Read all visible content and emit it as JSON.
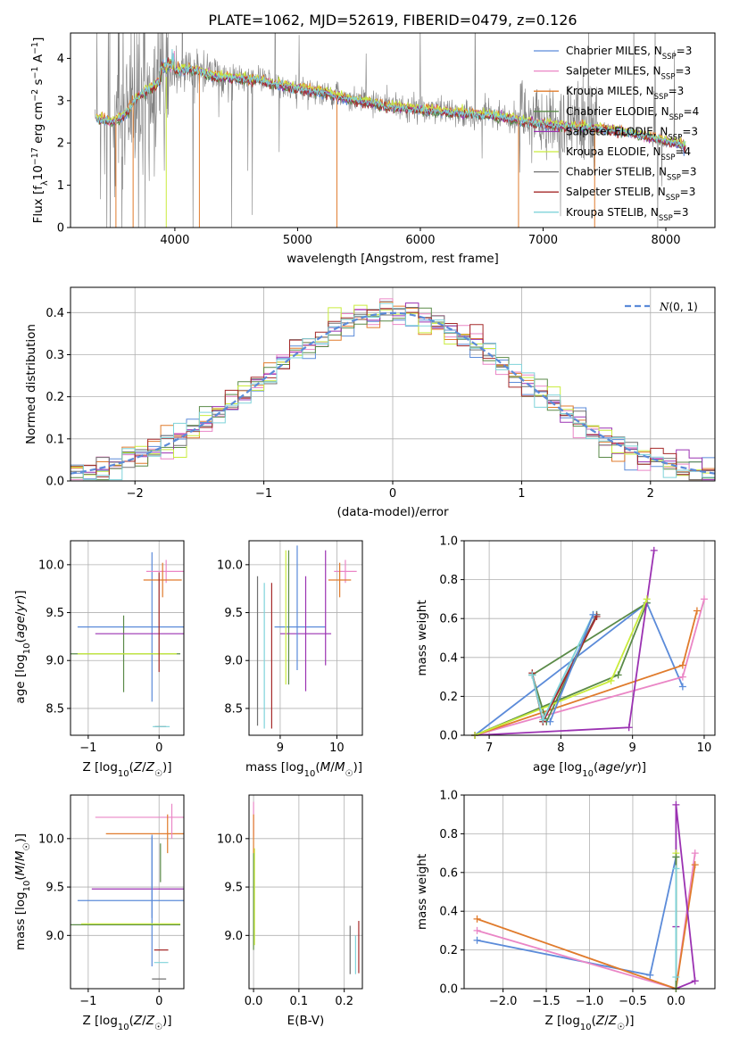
{
  "chart_data": [
    {
      "id": "spectrum",
      "type": "line",
      "title": "PLATE=1062, MJD=52619, FIBERID=0479, z=0.126",
      "xlabel": "wavelength [Angstrom, rest frame]",
      "ylabel_parts": [
        "Flux [f",
        "λ",
        "10",
        "−17",
        " erg cm",
        "−2",
        " s",
        "−1",
        " A",
        "−1",
        "]"
      ],
      "xlim": [
        3150,
        8400
      ],
      "ylim": [
        0,
        4.6
      ],
      "xticks": [
        4000,
        5000,
        6000,
        7000,
        8000
      ],
      "yticks": [
        0,
        1,
        2,
        3,
        4
      ],
      "grid": false,
      "legend_position": "upper right",
      "data_curve": {
        "color": "#808080",
        "x": [
          3350,
          3500,
          3600,
          3700,
          3800,
          3900,
          4000,
          4100,
          4200,
          4300,
          4400,
          4500,
          4600,
          4700,
          4800,
          4900,
          5000,
          5200,
          5400,
          5600,
          5800,
          6000,
          6200,
          6400,
          6600,
          6800,
          7000,
          7200,
          7400,
          7600,
          7800,
          8000,
          8150
        ],
        "y": [
          2.6,
          2.5,
          2.7,
          3.1,
          3.3,
          3.5,
          3.7,
          3.75,
          3.7,
          3.6,
          3.55,
          3.55,
          3.5,
          3.5,
          3.4,
          3.35,
          3.3,
          3.2,
          3.05,
          2.95,
          2.85,
          2.8,
          2.75,
          2.7,
          2.65,
          2.55,
          2.45,
          2.4,
          2.35,
          2.3,
          2.2,
          2.05,
          1.95
        ]
      },
      "series": [
        {
          "name": "Chabrier MILES, N",
          "sub": "SSP",
          "suffix": "=3",
          "color": "#5b8bd9"
        },
        {
          "name": "Salpeter MILES, N",
          "sub": "SSP",
          "suffix": "=3",
          "color": "#ea86c6"
        },
        {
          "name": "Kroupa MILES, N",
          "sub": "SSP",
          "suffix": "=3",
          "color": "#e07b2c"
        },
        {
          "name": "Chabrier ELODIE, N",
          "sub": "SSP",
          "suffix": "=4",
          "color": "#5a8a48"
        },
        {
          "name": "Salpeter ELODIE, N",
          "sub": "SSP",
          "suffix": "=3",
          "color": "#9b32b2"
        },
        {
          "name": "Kroupa ELODIE, N",
          "sub": "SSP",
          "suffix": "=4",
          "color": "#c9ec3c"
        },
        {
          "name": "Chabrier STELIB, N",
          "sub": "SSP",
          "suffix": "=3",
          "color": "#707070"
        },
        {
          "name": "Salpeter STELIB, N",
          "sub": "SSP",
          "suffix": "=3",
          "color": "#a52a2a"
        },
        {
          "name": "Kroupa STELIB, N",
          "sub": "SSP",
          "suffix": "=3",
          "color": "#7fd3da"
        }
      ]
    },
    {
      "id": "residuals",
      "type": "histogram",
      "xlabel": "(data-model)/error",
      "ylabel": "Normed distribution",
      "xlim": [
        -2.5,
        2.5
      ],
      "ylim": [
        0,
        0.46
      ],
      "xticks": [
        -2,
        -1,
        0,
        1,
        2
      ],
      "yticks": [
        0.0,
        0.1,
        0.2,
        0.3,
        0.4
      ],
      "grid": true,
      "legend_position": "upper right",
      "reference": {
        "name": "N(0,1)",
        "mean": 0,
        "sigma": 1,
        "color": "#5b8bd9"
      },
      "bin_width": 0.1
    },
    {
      "id": "age-vs-Z",
      "type": "errorbar",
      "xlabel": "Z [log10(Z/Z☉)]",
      "ylabel": "age  [log10(age/yr)]",
      "xlim": [
        -1.25,
        0.35
      ],
      "ylim": [
        8.22,
        10.25
      ],
      "xticks": [
        -1,
        0
      ],
      "yticks": [
        8.5,
        9.0,
        9.5,
        10.0
      ],
      "grid": true,
      "points": [
        {
          "color": "#5b8bd9",
          "x": -0.1,
          "xerr": 1.05,
          "y": 9.35,
          "yerr": 0.78
        },
        {
          "color": "#ea86c6",
          "x": 0.1,
          "xerr": 0.28,
          "y": 9.93,
          "yerr": 0.12
        },
        {
          "color": "#e07b2c",
          "x": 0.05,
          "xerr": 0.27,
          "y": 9.84,
          "yerr": 0.18
        },
        {
          "color": "#5a8a48",
          "x": -0.5,
          "xerr": 0.8,
          "y": 9.07,
          "yerr": 0.4
        },
        {
          "color": "#9b32b2",
          "x": -0.1,
          "xerr": 0.8,
          "y": 9.28,
          "yerr": 0.0
        },
        {
          "color": "#c9ec3c",
          "x": -0.45,
          "xerr": 0.7,
          "y": 9.07,
          "yerr": 0.0
        },
        {
          "color": "#707070",
          "x": 0.02,
          "xerr": 0.08,
          "y": 8.31,
          "yerr": 0.0
        },
        {
          "color": "#a52a2a",
          "x": 0.0,
          "xerr": 0.0,
          "y": 9.4,
          "yerr": 0.52
        },
        {
          "color": "#7fd3da",
          "x": 0.03,
          "xerr": 0.12,
          "y": 8.31,
          "yerr": 0.0
        }
      ]
    },
    {
      "id": "age-vs-mass",
      "type": "errorbar",
      "xlabel": "mass [log10(M/M☉)]",
      "ylabel": "",
      "xlim": [
        8.45,
        10.45
      ],
      "ylim": [
        8.22,
        10.25
      ],
      "xticks": [
        9,
        10
      ],
      "yticks": [
        8.5,
        9.0,
        9.5,
        10.0
      ],
      "grid": true,
      "points": [
        {
          "color": "#5b8bd9",
          "x": 9.35,
          "xerr": 0.45,
          "y": 9.35,
          "yerr": 0.0
        },
        {
          "color": "#ea86c6",
          "x": 10.15,
          "xerr": 0.2,
          "y": 9.93,
          "yerr": 0.12
        },
        {
          "color": "#e07b2c",
          "x": 10.05,
          "xerr": 0.2,
          "y": 9.84,
          "yerr": 0.18
        },
        {
          "color": "#5a8a48",
          "x": 9.15,
          "xerr": 0.0,
          "y": 9.45,
          "yerr": 0.7
        },
        {
          "color": "#9b32b2",
          "x": 9.45,
          "xerr": 0.45,
          "y": 9.28,
          "yerr": 0.6
        },
        {
          "color": "#c9ec3c",
          "x": 9.1,
          "xerr": 0.0,
          "y": 9.45,
          "yerr": 0.7
        },
        {
          "color": "#707070",
          "x": 8.6,
          "xerr": 0.0,
          "y": 9.1,
          "yerr": 0.78
        },
        {
          "color": "#a52a2a",
          "x": 8.85,
          "xerr": 0.0,
          "y": 9.05,
          "yerr": 0.76
        },
        {
          "color": "#7fd3da",
          "x": 8.72,
          "xerr": 0.0,
          "y": 9.05,
          "yerr": 0.76
        },
        {
          "color": "#9b32b2",
          "x": 9.8,
          "xerr": 0.0,
          "y": 9.55,
          "yerr": 0.6
        },
        {
          "color": "#5b8bd9",
          "x": 9.3,
          "xerr": 0.0,
          "y": 9.55,
          "yerr": 0.65
        }
      ]
    },
    {
      "id": "weight-vs-age",
      "type": "line",
      "xlabel": "age  [log10(age/yr)]",
      "ylabel": "mass weight",
      "xlim": [
        6.65,
        10.15
      ],
      "ylim": [
        0,
        1.0
      ],
      "xticks": [
        7,
        8,
        9,
        10
      ],
      "yticks": [
        0.0,
        0.2,
        0.4,
        0.6,
        0.8,
        1.0
      ],
      "grid": true,
      "series": [
        {
          "color": "#5b8bd9",
          "x": [
            6.8,
            9.2,
            9.7
          ],
          "y": [
            0.0,
            0.68,
            0.25
          ]
        },
        {
          "color": "#ea86c6",
          "x": [
            6.8,
            9.7,
            10.0
          ],
          "y": [
            0.0,
            0.3,
            0.7
          ]
        },
        {
          "color": "#e07b2c",
          "x": [
            6.8,
            9.7,
            9.9
          ],
          "y": [
            0.0,
            0.36,
            0.64
          ]
        },
        {
          "color": "#5a8a48",
          "x": [
            6.8,
            8.8,
            9.2,
            7.6,
            7.8,
            8.5
          ],
          "y": [
            0.0,
            0.31,
            0.68,
            0.31,
            0.07,
            0.62
          ]
        },
        {
          "color": "#9b32b2",
          "x": [
            6.8,
            8.95,
            9.3
          ],
          "y": [
            0.0,
            0.04,
            0.95
          ]
        },
        {
          "color": "#c9ec3c",
          "x": [
            6.8,
            8.7,
            9.2
          ],
          "y": [
            0.0,
            0.28,
            0.7
          ]
        },
        {
          "color": "#707070",
          "x": [
            7.6,
            7.75,
            8.5
          ],
          "y": [
            0.31,
            0.07,
            0.62
          ]
        },
        {
          "color": "#a52a2a",
          "x": [
            7.6,
            7.75,
            8.5
          ],
          "y": [
            0.32,
            0.07,
            0.61
          ]
        },
        {
          "color": "#7fd3da",
          "x": [
            7.6,
            7.75,
            8.45
          ],
          "y": [
            0.31,
            0.08,
            0.62
          ]
        },
        {
          "color": "#5b8bd9",
          "x": [
            7.85,
            8.45
          ],
          "y": [
            0.07,
            0.62
          ]
        }
      ]
    },
    {
      "id": "mass-vs-Z",
      "type": "errorbar",
      "xlabel": "Z [log10(Z/Z☉)]",
      "ylabel": "mass [log10(M/M☉)]",
      "xlim": [
        -1.25,
        0.35
      ],
      "ylim": [
        8.45,
        10.45
      ],
      "xticks": [
        -1,
        0
      ],
      "yticks": [
        9.0,
        9.5,
        10.0
      ],
      "grid": true,
      "points": [
        {
          "color": "#5b8bd9",
          "x": -0.1,
          "xerr": 1.05,
          "y": 9.36,
          "yerr": 0.68
        },
        {
          "color": "#ea86c6",
          "x": -0.15,
          "xerr": 0.75,
          "y": 10.22,
          "yerr": 0.0
        },
        {
          "color": "#e07b2c",
          "x": -0.15,
          "xerr": 0.6,
          "y": 10.05,
          "yerr": 0.0
        },
        {
          "color": "#5a8a48",
          "x": -0.5,
          "xerr": 0.8,
          "y": 9.11,
          "yerr": 0.0
        },
        {
          "color": "#9b32b2",
          "x": -0.2,
          "xerr": 0.75,
          "y": 9.48,
          "yerr": 0.0
        },
        {
          "color": "#c9ec3c",
          "x": -0.4,
          "xerr": 0.7,
          "y": 9.12,
          "yerr": 0.0
        },
        {
          "color": "#707070",
          "x": 0.0,
          "xerr": 0.1,
          "y": 8.55,
          "yerr": 0.0
        },
        {
          "color": "#a52a2a",
          "x": 0.03,
          "xerr": 0.1,
          "y": 8.85,
          "yerr": 0.0
        },
        {
          "color": "#7fd3da",
          "x": 0.03,
          "xerr": 0.1,
          "y": 8.72,
          "yerr": 0.0
        },
        {
          "color": "#e07b2c",
          "x": 0.12,
          "xerr": 0.0,
          "y": 10.05,
          "yerr": 0.2
        },
        {
          "color": "#ea86c6",
          "x": 0.18,
          "xerr": 0.0,
          "y": 10.18,
          "yerr": 0.18
        },
        {
          "color": "#5a8a48",
          "x": 0.02,
          "xerr": 0.0,
          "y": 9.75,
          "yerr": 0.2
        },
        {
          "color": "#5b8bd9",
          "x": -0.1,
          "xerr": 0.0,
          "y": 9.6,
          "yerr": 0.42
        }
      ]
    },
    {
      "id": "mass-vs-EBV",
      "type": "errorbar",
      "xlabel": "E(B-V)",
      "ylabel": "",
      "xlim": [
        -0.01,
        0.24
      ],
      "ylim": [
        8.45,
        10.45
      ],
      "xticks": [
        0.0,
        0.1,
        0.2
      ],
      "yticks": [
        9.0,
        9.5,
        10.0
      ],
      "grid": true,
      "points": [
        {
          "color": "#ea86c6",
          "x": 0.0,
          "xerr": 0.0,
          "y": 10.2,
          "yerr": 0.18
        },
        {
          "color": "#e07b2c",
          "x": 0.0,
          "xerr": 0.0,
          "y": 10.05,
          "yerr": 0.2
        },
        {
          "color": "#5a8a48",
          "x": 0.0,
          "xerr": 0.0,
          "y": 9.35,
          "yerr": 0.5
        },
        {
          "color": "#c9ec3c",
          "x": 0.002,
          "xerr": 0.0,
          "y": 9.4,
          "yerr": 0.5
        },
        {
          "color": "#707070",
          "x": 0.213,
          "xerr": 0.0,
          "y": 8.85,
          "yerr": 0.25
        },
        {
          "color": "#a52a2a",
          "x": 0.232,
          "xerr": 0.0,
          "y": 8.88,
          "yerr": 0.27
        },
        {
          "color": "#7fd3da",
          "x": 0.225,
          "xerr": 0.0,
          "y": 8.8,
          "yerr": 0.2
        }
      ]
    },
    {
      "id": "weight-vs-Z",
      "type": "line",
      "xlabel": "Z [log10(Z/Z☉)]",
      "ylabel": "mass weight",
      "xlim": [
        -2.45,
        0.45
      ],
      "ylim": [
        0,
        1.0
      ],
      "xticks": [
        -2.0,
        -1.5,
        -1.0,
        -0.5,
        0.0
      ],
      "yticks": [
        0.0,
        0.2,
        0.4,
        0.6,
        0.8,
        1.0
      ],
      "grid": true,
      "series": [
        {
          "color": "#5b8bd9",
          "x": [
            -2.3,
            -0.3,
            0.0,
            0.0
          ],
          "y": [
            0.25,
            0.07,
            0.68,
            0.0
          ]
        },
        {
          "color": "#ea86c6",
          "x": [
            -2.3,
            0.0,
            0.22
          ],
          "y": [
            0.3,
            0.0,
            0.7
          ]
        },
        {
          "color": "#e07b2c",
          "x": [
            -2.3,
            0.0,
            0.22
          ],
          "y": [
            0.36,
            0.0,
            0.64
          ]
        },
        {
          "color": "#9b32b2",
          "x": [
            0.0,
            0.0,
            0.22,
            0.0
          ],
          "y": [
            0.32,
            0.95,
            0.04,
            0.0
          ]
        },
        {
          "color": "#c9ec3c",
          "x": [
            0.0,
            0.0
          ],
          "y": [
            0.0,
            0.7
          ]
        },
        {
          "color": "#5a8a48",
          "x": [
            0.0,
            0.0
          ],
          "y": [
            0.0,
            0.68
          ]
        },
        {
          "color": "#7fd3da",
          "x": [
            0.0,
            0.0
          ],
          "y": [
            0.06,
            0.62
          ]
        }
      ]
    }
  ]
}
